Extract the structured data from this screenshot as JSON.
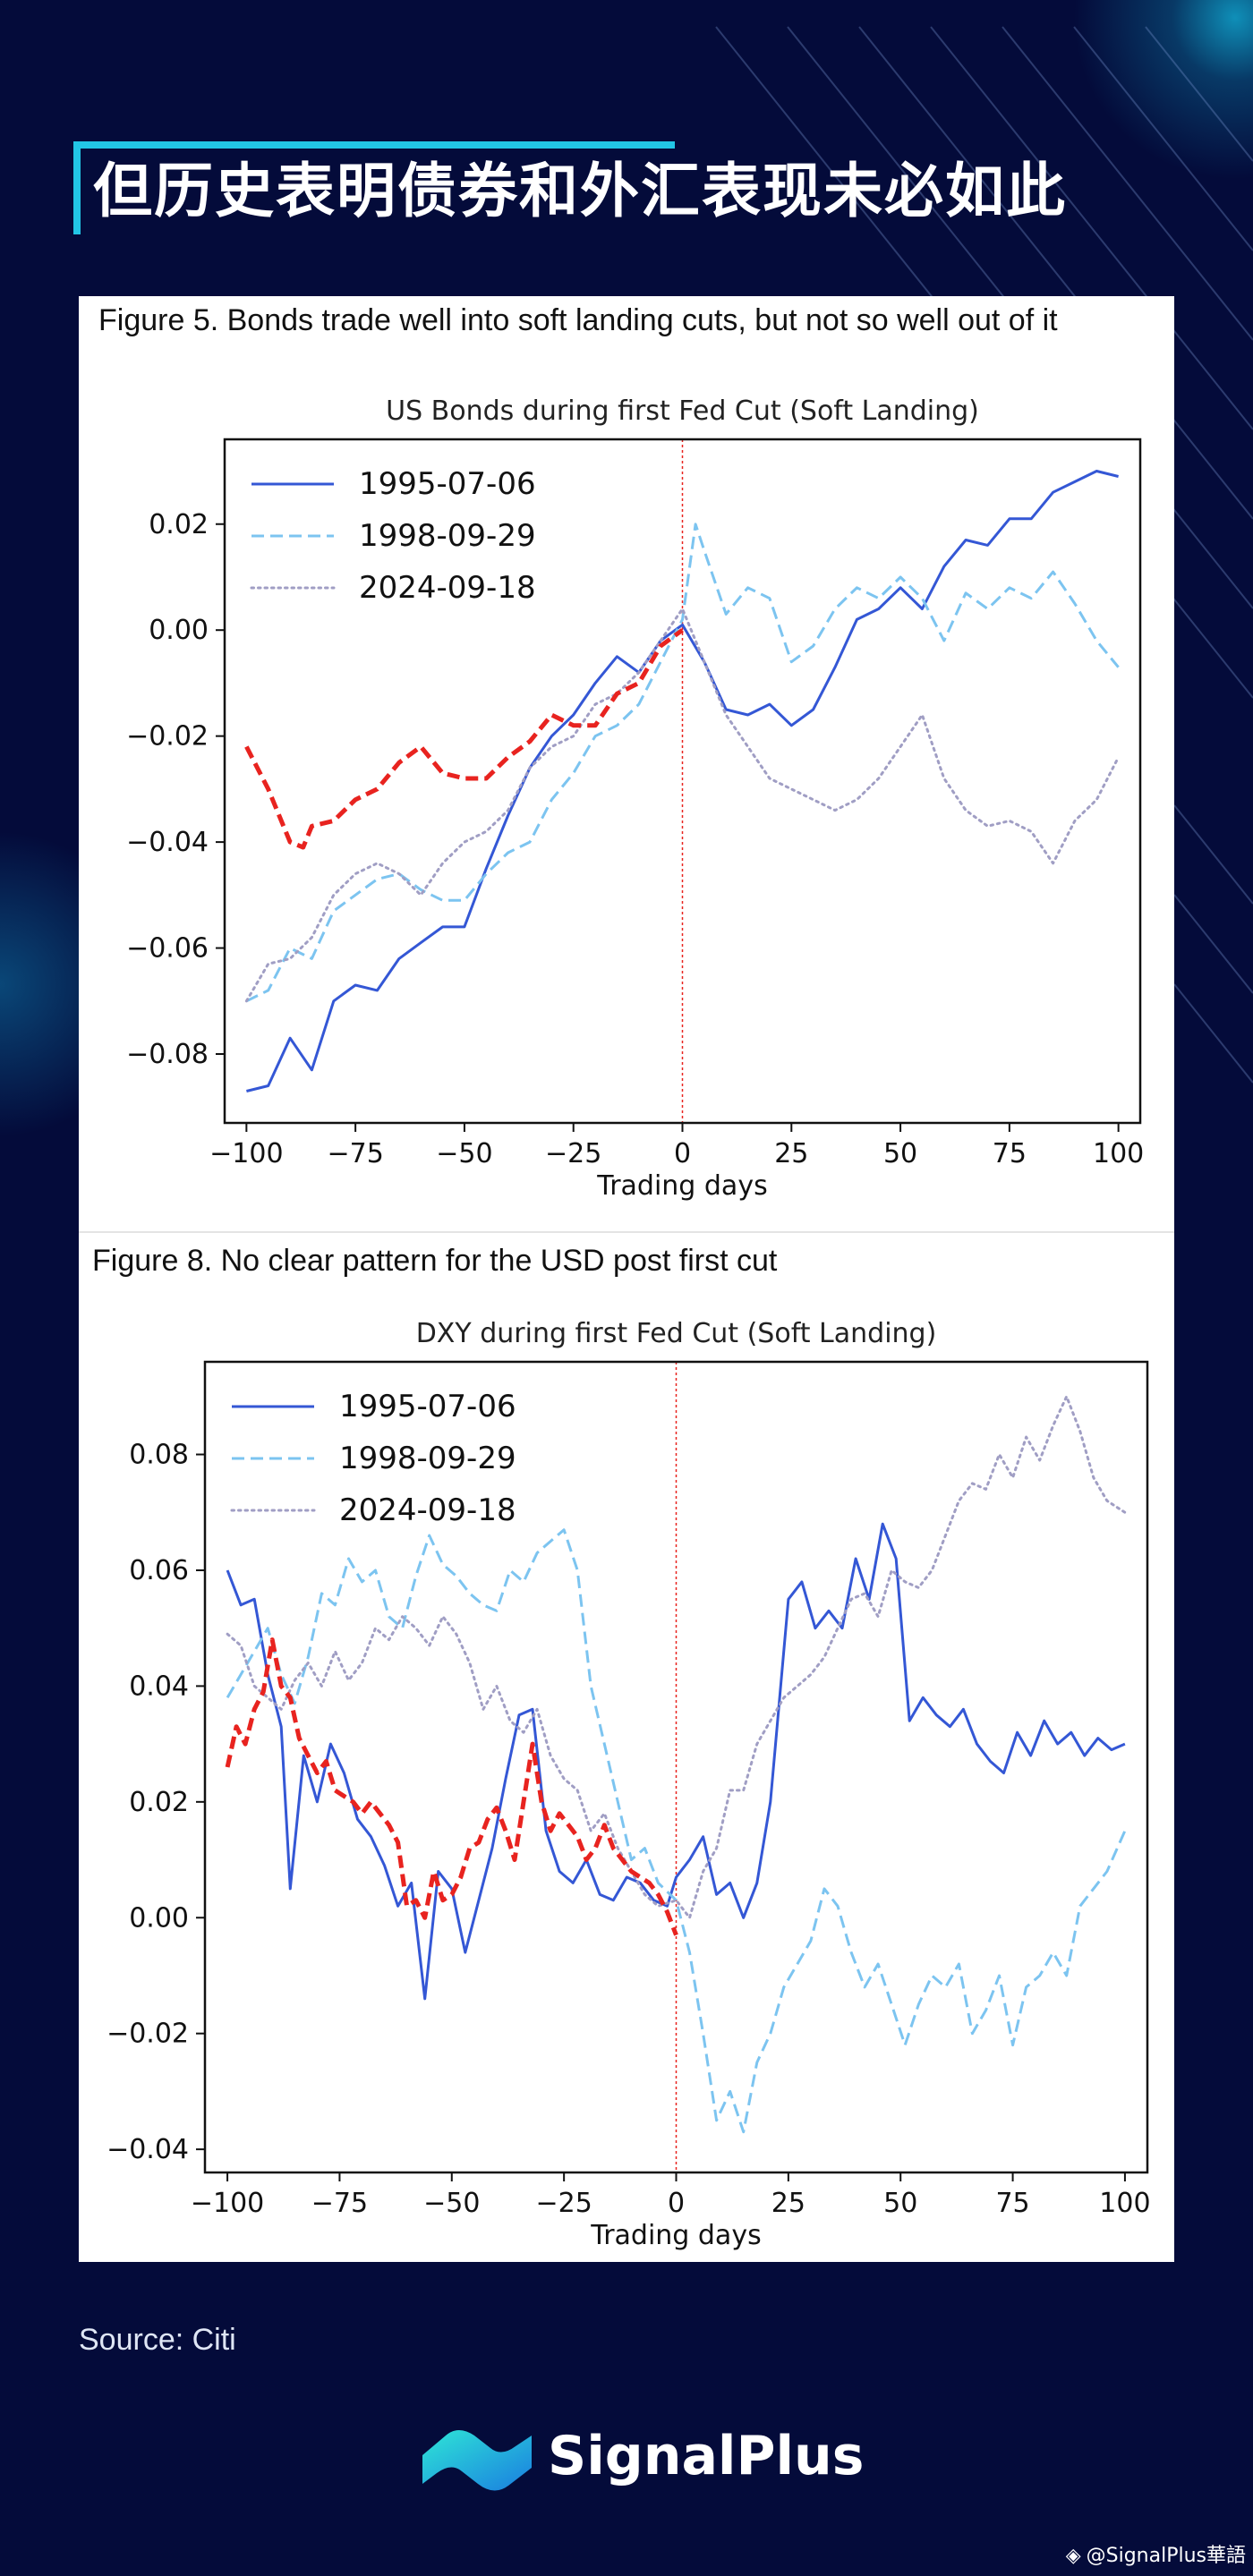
{
  "page": {
    "title": "但历史表明债券和外汇表现未必如此",
    "source": "Source: Citi",
    "brand": "SignalPlus",
    "watermark": "@SignalPlus華語",
    "colors": {
      "background": "#040b3a",
      "accent": "#22c6e6"
    }
  },
  "icons": {
    "brand_logo": "signalplus-logo-icon",
    "watermark_logo": "binance-diamond-icon"
  },
  "chart_data": [
    {
      "type": "line",
      "caption": "Figure 5. Bonds trade well into soft landing cuts, but not so well out of it",
      "title": "US Bonds during first Fed Cut (Soft Landing)",
      "xlabel": "Trading days",
      "ylabel": "",
      "xlim": [
        -105,
        105
      ],
      "ylim": [
        -0.093,
        0.036
      ],
      "xticks": [
        -100,
        -75,
        -50,
        -25,
        0,
        25,
        50,
        75,
        100
      ],
      "yticks": [
        -0.08,
        -0.06,
        -0.04,
        -0.02,
        0.0,
        0.02
      ],
      "ytick_labels": [
        "−0.08",
        "−0.06",
        "−0.04",
        "−0.02",
        "0.00",
        "0.02"
      ],
      "xtick_labels": [
        "−100",
        "−75",
        "−50",
        "−25",
        "0",
        "25",
        "50",
        "75",
        "100"
      ],
      "vline_x": 0,
      "grid": false,
      "legend_position": "top-left",
      "series": [
        {
          "name": "1995-07-06",
          "color": "#3457d5",
          "style": "solid",
          "width": 3,
          "x": [
            -100,
            -95,
            -90,
            -85,
            -80,
            -75,
            -70,
            -65,
            -60,
            -55,
            -50,
            -45,
            -40,
            -35,
            -30,
            -25,
            -20,
            -15,
            -10,
            -5,
            0,
            5,
            10,
            15,
            20,
            25,
            30,
            35,
            40,
            45,
            50,
            55,
            60,
            65,
            70,
            75,
            80,
            85,
            90,
            95,
            100
          ],
          "y": [
            -0.087,
            -0.086,
            -0.077,
            -0.083,
            -0.07,
            -0.067,
            -0.068,
            -0.062,
            -0.059,
            -0.056,
            -0.056,
            -0.045,
            -0.035,
            -0.026,
            -0.02,
            -0.016,
            -0.01,
            -0.005,
            -0.008,
            -0.002,
            0.001,
            -0.006,
            -0.015,
            -0.016,
            -0.014,
            -0.018,
            -0.015,
            -0.007,
            0.002,
            0.004,
            0.008,
            0.004,
            0.012,
            0.017,
            0.016,
            0.021,
            0.021,
            0.026,
            0.028,
            0.03,
            0.029
          ]
        },
        {
          "name": "1998-09-29",
          "color": "#7cc4f0",
          "style": "dashed",
          "width": 3,
          "x": [
            -100,
            -95,
            -90,
            -85,
            -80,
            -75,
            -70,
            -65,
            -60,
            -55,
            -50,
            -45,
            -40,
            -35,
            -30,
            -25,
            -20,
            -15,
            -10,
            -5,
            0,
            3,
            5,
            10,
            15,
            20,
            25,
            30,
            35,
            40,
            45,
            50,
            55,
            60,
            65,
            70,
            75,
            80,
            85,
            90,
            95,
            100
          ],
          "y": [
            -0.07,
            -0.068,
            -0.06,
            -0.062,
            -0.053,
            -0.05,
            -0.047,
            -0.046,
            -0.049,
            -0.051,
            -0.051,
            -0.046,
            -0.042,
            -0.04,
            -0.032,
            -0.027,
            -0.02,
            -0.018,
            -0.014,
            -0.006,
            0.002,
            0.02,
            0.015,
            0.003,
            0.008,
            0.006,
            -0.006,
            -0.003,
            0.004,
            0.008,
            0.006,
            0.01,
            0.006,
            -0.002,
            0.007,
            0.004,
            0.008,
            0.006,
            0.011,
            0.005,
            -0.002,
            -0.007
          ]
        },
        {
          "name": "2024-09-18",
          "color": "#a09ec4",
          "style": "dotted",
          "width": 3,
          "x": [
            -100,
            -95,
            -90,
            -85,
            -80,
            -75,
            -70,
            -65,
            -60,
            -55,
            -50,
            -45,
            -40,
            -35,
            -30,
            -25,
            -20,
            -15,
            -10,
            -5,
            0,
            5,
            10,
            15,
            20,
            25,
            30,
            35,
            40,
            45,
            50,
            55,
            60,
            65,
            70,
            75,
            80,
            85,
            90,
            95,
            100
          ],
          "y": [
            -0.07,
            -0.063,
            -0.062,
            -0.058,
            -0.05,
            -0.046,
            -0.044,
            -0.046,
            -0.05,
            -0.044,
            -0.04,
            -0.038,
            -0.034,
            -0.026,
            -0.022,
            -0.02,
            -0.014,
            -0.012,
            -0.008,
            -0.002,
            0.004,
            -0.006,
            -0.016,
            -0.022,
            -0.028,
            -0.03,
            -0.032,
            -0.034,
            -0.032,
            -0.028,
            -0.022,
            -0.016,
            -0.028,
            -0.034,
            -0.037,
            -0.036,
            -0.038,
            -0.044,
            -0.036,
            -0.032,
            -0.024
          ]
        },
        {
          "color": "#e8231f",
          "style": "dashed",
          "width": 5,
          "x": [
            -100,
            -95,
            -90,
            -87,
            -85,
            -80,
            -75,
            -70,
            -65,
            -60,
            -55,
            -50,
            -45,
            -40,
            -35,
            -30,
            -25,
            -20,
            -15,
            -10,
            -5,
            0
          ],
          "y": [
            -0.022,
            -0.03,
            -0.04,
            -0.041,
            -0.037,
            -0.036,
            -0.032,
            -0.03,
            -0.025,
            -0.022,
            -0.027,
            -0.028,
            -0.028,
            -0.024,
            -0.021,
            -0.016,
            -0.018,
            -0.018,
            -0.012,
            -0.01,
            -0.003,
            0.0
          ]
        }
      ]
    },
    {
      "type": "line",
      "caption": "Figure 8. No clear pattern for the USD post first cut",
      "title": "DXY during first Fed Cut (Soft Landing)",
      "xlabel": "Trading days",
      "ylabel": "",
      "xlim": [
        -105,
        105
      ],
      "ylim": [
        -0.044,
        0.096
      ],
      "xticks": [
        -100,
        -75,
        -50,
        -25,
        0,
        25,
        50,
        75,
        100
      ],
      "yticks": [
        -0.04,
        -0.02,
        0.0,
        0.02,
        0.04,
        0.06,
        0.08
      ],
      "ytick_labels": [
        "−0.04",
        "−0.02",
        "0.00",
        "0.02",
        "0.04",
        "0.06",
        "0.08"
      ],
      "xtick_labels": [
        "−100",
        "−75",
        "−50",
        "−25",
        "0",
        "25",
        "50",
        "75",
        "100"
      ],
      "vline_x": 0,
      "grid": false,
      "legend_position": "top-left",
      "series": [
        {
          "name": "1995-07-06",
          "color": "#3457d5",
          "style": "solid",
          "width": 3,
          "x": [
            -100,
            -97,
            -94,
            -91,
            -88,
            -86,
            -83,
            -80,
            -77,
            -74,
            -71,
            -68,
            -65,
            -62,
            -59,
            -56,
            -53,
            -50,
            -47,
            -44,
            -41,
            -38,
            -35,
            -32,
            -29,
            -26,
            -23,
            -20,
            -17,
            -14,
            -11,
            -8,
            -5,
            -2,
            0,
            3,
            6,
            9,
            12,
            15,
            18,
            21,
            25,
            28,
            31,
            34,
            37,
            40,
            43,
            46,
            49,
            52,
            55,
            58,
            61,
            64,
            67,
            70,
            73,
            76,
            79,
            82,
            85,
            88,
            91,
            94,
            97,
            100
          ],
          "y": [
            0.06,
            0.054,
            0.055,
            0.042,
            0.033,
            0.005,
            0.028,
            0.02,
            0.03,
            0.025,
            0.017,
            0.014,
            0.009,
            0.002,
            0.006,
            -0.014,
            0.008,
            0.005,
            -0.006,
            0.003,
            0.012,
            0.024,
            0.035,
            0.036,
            0.015,
            0.008,
            0.006,
            0.01,
            0.004,
            0.003,
            0.007,
            0.006,
            0.003,
            0.002,
            0.007,
            0.01,
            0.014,
            0.004,
            0.006,
            0.0,
            0.006,
            0.02,
            0.055,
            0.058,
            0.05,
            0.053,
            0.05,
            0.062,
            0.055,
            0.068,
            0.062,
            0.034,
            0.038,
            0.035,
            0.033,
            0.036,
            0.03,
            0.027,
            0.025,
            0.032,
            0.028,
            0.034,
            0.03,
            0.032,
            0.028,
            0.031,
            0.029,
            0.03
          ]
        },
        {
          "name": "1998-09-29",
          "color": "#7cc4f0",
          "style": "dashed",
          "width": 3,
          "x": [
            -100,
            -97,
            -94,
            -91,
            -88,
            -85,
            -82,
            -79,
            -76,
            -73,
            -70,
            -67,
            -64,
            -61,
            -58,
            -55,
            -52,
            -49,
            -46,
            -43,
            -40,
            -37,
            -34,
            -31,
            -28,
            -25,
            -22,
            -19,
            -16,
            -13,
            -10,
            -7,
            -4,
            0,
            3,
            6,
            9,
            12,
            15,
            18,
            21,
            24,
            27,
            30,
            33,
            36,
            39,
            42,
            45,
            48,
            51,
            54,
            57,
            60,
            63,
            66,
            69,
            72,
            75,
            78,
            81,
            84,
            87,
            90,
            93,
            96,
            100
          ],
          "y": [
            0.038,
            0.042,
            0.046,
            0.05,
            0.042,
            0.037,
            0.045,
            0.056,
            0.054,
            0.062,
            0.058,
            0.06,
            0.052,
            0.05,
            0.059,
            0.066,
            0.061,
            0.059,
            0.056,
            0.054,
            0.053,
            0.06,
            0.058,
            0.063,
            0.065,
            0.067,
            0.06,
            0.04,
            0.03,
            0.02,
            0.01,
            0.012,
            0.006,
            0.003,
            -0.006,
            -0.02,
            -0.035,
            -0.03,
            -0.037,
            -0.025,
            -0.02,
            -0.012,
            -0.008,
            -0.004,
            0.005,
            0.002,
            -0.006,
            -0.012,
            -0.008,
            -0.015,
            -0.022,
            -0.015,
            -0.01,
            -0.012,
            -0.008,
            -0.02,
            -0.016,
            -0.01,
            -0.022,
            -0.012,
            -0.01,
            -0.006,
            -0.01,
            0.002,
            0.005,
            0.008,
            0.015
          ]
        },
        {
          "name": "2024-09-18",
          "color": "#a09ec4",
          "style": "dotted",
          "width": 3,
          "x": [
            -100,
            -97,
            -94,
            -91,
            -88,
            -85,
            -82,
            -79,
            -76,
            -73,
            -70,
            -67,
            -64,
            -61,
            -58,
            -55,
            -52,
            -49,
            -46,
            -43,
            -40,
            -37,
            -34,
            -31,
            -28,
            -25,
            -22,
            -19,
            -16,
            -13,
            -10,
            -7,
            -4,
            0,
            3,
            6,
            9,
            12,
            15,
            18,
            21,
            24,
            27,
            30,
            33,
            36,
            39,
            42,
            45,
            48,
            51,
            54,
            57,
            60,
            63,
            66,
            69,
            72,
            75,
            78,
            81,
            84,
            87,
            90,
            93,
            96,
            100
          ],
          "y": [
            0.049,
            0.047,
            0.04,
            0.038,
            0.036,
            0.041,
            0.044,
            0.04,
            0.046,
            0.041,
            0.044,
            0.05,
            0.048,
            0.052,
            0.05,
            0.047,
            0.052,
            0.049,
            0.044,
            0.036,
            0.04,
            0.034,
            0.032,
            0.036,
            0.028,
            0.024,
            0.022,
            0.015,
            0.018,
            0.012,
            0.008,
            0.004,
            0.002,
            0.003,
            0.0,
            0.008,
            0.012,
            0.022,
            0.022,
            0.03,
            0.034,
            0.038,
            0.04,
            0.042,
            0.045,
            0.05,
            0.055,
            0.056,
            0.052,
            0.06,
            0.058,
            0.057,
            0.06,
            0.066,
            0.072,
            0.075,
            0.074,
            0.08,
            0.076,
            0.083,
            0.079,
            0.085,
            0.09,
            0.084,
            0.076,
            0.072,
            0.07
          ]
        },
        {
          "color": "#e8231f",
          "style": "dashed",
          "width": 5,
          "x": [
            -100,
            -98,
            -96,
            -94,
            -92,
            -90,
            -88,
            -86,
            -84,
            -82,
            -80,
            -78,
            -76,
            -74,
            -72,
            -70,
            -68,
            -66,
            -64,
            -62,
            -60,
            -58,
            -56,
            -54,
            -52,
            -50,
            -48,
            -46,
            -44,
            -42,
            -40,
            -38,
            -36,
            -34,
            -32,
            -30,
            -28,
            -26,
            -24,
            -22,
            -20,
            -18,
            -16,
            -14,
            -12,
            -10,
            -8,
            -6,
            -4,
            -2,
            0
          ],
          "y": [
            0.026,
            0.033,
            0.03,
            0.036,
            0.039,
            0.048,
            0.04,
            0.038,
            0.031,
            0.028,
            0.025,
            0.027,
            0.022,
            0.021,
            0.02,
            0.018,
            0.02,
            0.018,
            0.016,
            0.013,
            0.002,
            0.003,
            0.0,
            0.008,
            0.003,
            0.004,
            0.007,
            0.012,
            0.013,
            0.017,
            0.019,
            0.015,
            0.01,
            0.02,
            0.03,
            0.02,
            0.015,
            0.018,
            0.016,
            0.014,
            0.01,
            0.012,
            0.016,
            0.012,
            0.01,
            0.008,
            0.007,
            0.006,
            0.004,
            0.001,
            -0.003
          ]
        }
      ]
    }
  ]
}
